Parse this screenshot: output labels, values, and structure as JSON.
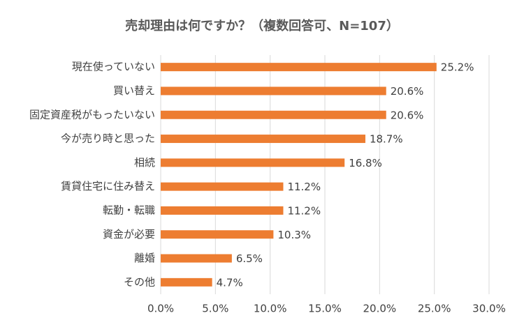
{
  "chart_data": {
    "type": "bar",
    "orientation": "horizontal",
    "title": "売却理由は何ですか？（複数回答可、N=107）",
    "categories": [
      "現在使っていない",
      "買い替え",
      "固定資産税がもったいない",
      "今が売り時と思った",
      "相続",
      "賃貸住宅に住み替え",
      "転勤・転職",
      "資金が必要",
      "離婚",
      "その他"
    ],
    "values": [
      25.2,
      20.6,
      20.6,
      18.7,
      16.8,
      11.2,
      11.2,
      10.3,
      6.5,
      4.7
    ],
    "value_labels": [
      "25.2%",
      "20.6%",
      "20.6%",
      "18.7%",
      "16.8%",
      "11.2%",
      "11.2%",
      "10.3%",
      "6.5%",
      "4.7%"
    ],
    "color": "#ed7d31",
    "xlim": [
      0,
      30
    ],
    "xticks": [
      {
        "value": 0,
        "label": "0.0%"
      },
      {
        "value": 5,
        "label": "5.0%"
      },
      {
        "value": 10,
        "label": "10.0%"
      },
      {
        "value": 15,
        "label": "15.0%"
      },
      {
        "value": 20,
        "label": "20.0%"
      },
      {
        "value": 25,
        "label": "25.0%"
      },
      {
        "value": 30,
        "label": "30.0%"
      }
    ],
    "grid": true
  }
}
